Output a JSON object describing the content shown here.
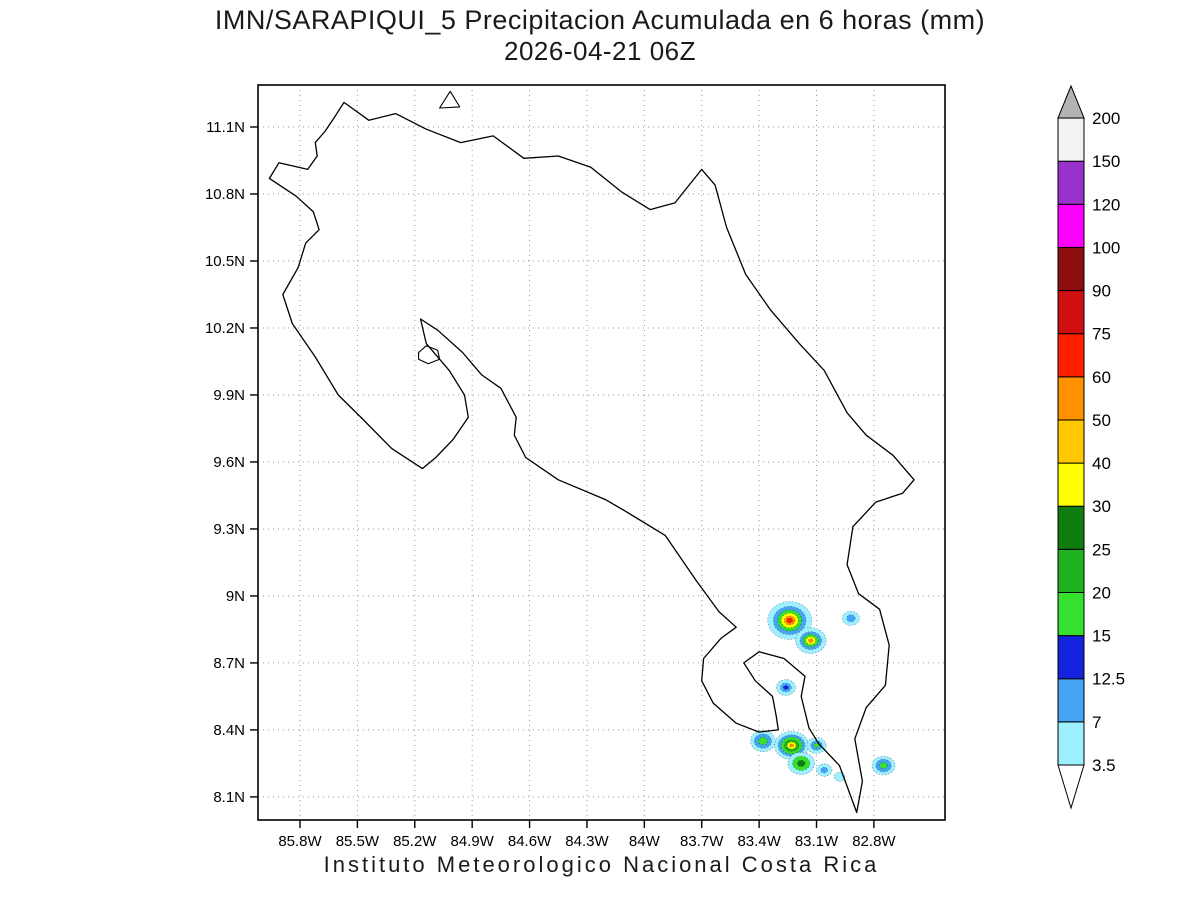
{
  "title": {
    "line1": "IMN/SARAPIQUI_5 Precipitacion Acumulada en 6 horas (mm)",
    "line2": "2026-04-21 06Z"
  },
  "footer": "Instituto Meteorologico Nacional Costa Rica",
  "chart_data": {
    "type": "filled-contour-map",
    "title": "IMN/SARAPIQUI_5 Precipitacion Acumulada en 6 horas (mm)",
    "subtitle": "2026-04-21 06Z",
    "units": "mm",
    "region": "Costa Rica",
    "grid": {
      "visible": true,
      "style": "dotted",
      "color": "#9a9a9a"
    },
    "domain": {
      "lon_w_min": 82.43,
      "lon_w_max": 86.02,
      "lat_n_min": 8.0,
      "lat_n_max": 11.29
    },
    "x_axis": {
      "ticks": [
        {
          "label": "85.8W",
          "value": 85.8
        },
        {
          "label": "85.5W",
          "value": 85.5
        },
        {
          "label": "85.2W",
          "value": 85.2
        },
        {
          "label": "84.9W",
          "value": 84.9
        },
        {
          "label": "84.6W",
          "value": 84.6
        },
        {
          "label": "84.3W",
          "value": 84.3
        },
        {
          "label": "84W",
          "value": 84.0
        },
        {
          "label": "83.7W",
          "value": 83.7
        },
        {
          "label": "83.4W",
          "value": 83.4
        },
        {
          "label": "83.1W",
          "value": 83.1
        },
        {
          "label": "82.8W",
          "value": 82.8
        }
      ]
    },
    "y_axis": {
      "ticks": [
        {
          "label": "11.1N",
          "value": 11.1
        },
        {
          "label": "10.8N",
          "value": 10.8
        },
        {
          "label": "10.5N",
          "value": 10.5
        },
        {
          "label": "10.2N",
          "value": 10.2
        },
        {
          "label": "9.9N",
          "value": 9.9
        },
        {
          "label": "9.6N",
          "value": 9.6
        },
        {
          "label": "9.3N",
          "value": 9.3
        },
        {
          "label": "9N",
          "value": 9.0
        },
        {
          "label": "8.7N",
          "value": 8.7
        },
        {
          "label": "8.4N",
          "value": 8.4
        },
        {
          "label": "8.1N",
          "value": 8.1
        }
      ]
    },
    "colorbar": {
      "position": "right",
      "levels": [
        3.5,
        7,
        12.5,
        15,
        20,
        25,
        30,
        40,
        50,
        60,
        75,
        90,
        100,
        120,
        150,
        200
      ],
      "labels_bottom_to_top": [
        "3.5",
        "7",
        "12.5",
        "15",
        "20",
        "25",
        "30",
        "40",
        "50",
        "60",
        "75",
        "90",
        "100",
        "120",
        "150",
        "200"
      ],
      "segment_colors_bottom_to_top": [
        "#9cf0ff",
        "#46a4f5",
        "#1322dd",
        "#35e02f",
        "#1fb41f",
        "#0e7c0e",
        "#ffff00",
        "#ffc800",
        "#ff9100",
        "#ff2000",
        "#cf0f0f",
        "#8c0d0d",
        "#ff00ff",
        "#9932cc",
        "#f2f2f2"
      ],
      "below_min_color": "#ffffff",
      "above_max_color": "#b3b3b3"
    },
    "coastline": {
      "main": [
        [
          85.72,
          11.03
        ],
        [
          85.67,
          11.08
        ],
        [
          85.63,
          11.13
        ],
        [
          85.57,
          11.21
        ],
        [
          85.44,
          11.13
        ],
        [
          85.3,
          11.16
        ],
        [
          85.14,
          11.09
        ],
        [
          84.96,
          11.03
        ],
        [
          84.79,
          11.06
        ],
        [
          84.63,
          10.96
        ],
        [
          84.45,
          10.97
        ],
        [
          84.28,
          10.92
        ],
        [
          84.12,
          10.81
        ],
        [
          83.97,
          10.73
        ],
        [
          83.84,
          10.76
        ],
        [
          83.7,
          10.91
        ],
        [
          83.63,
          10.84
        ],
        [
          83.57,
          10.65
        ],
        [
          83.47,
          10.44
        ],
        [
          83.34,
          10.28
        ],
        [
          83.19,
          10.13
        ],
        [
          83.06,
          10.01
        ],
        [
          82.94,
          9.82
        ],
        [
          82.84,
          9.72
        ],
        [
          82.7,
          9.63
        ],
        [
          82.59,
          9.52
        ],
        [
          82.65,
          9.46
        ],
        [
          82.79,
          9.42
        ],
        [
          82.91,
          9.31
        ],
        [
          82.94,
          9.14
        ],
        [
          82.88,
          9.01
        ],
        [
          82.77,
          8.94
        ],
        [
          82.72,
          8.78
        ],
        [
          82.74,
          8.6
        ],
        [
          82.84,
          8.5
        ],
        [
          82.9,
          8.36
        ],
        [
          82.86,
          8.17
        ],
        [
          82.89,
          8.03
        ],
        [
          82.98,
          8.24
        ],
        [
          83.09,
          8.34
        ],
        [
          83.14,
          8.41
        ],
        [
          83.18,
          8.55
        ],
        [
          83.16,
          8.64
        ],
        [
          83.27,
          8.72
        ],
        [
          83.4,
          8.75
        ],
        [
          83.48,
          8.7
        ],
        [
          83.42,
          8.62
        ],
        [
          83.33,
          8.55
        ],
        [
          83.31,
          8.46
        ],
        [
          83.3,
          8.4
        ],
        [
          83.4,
          8.39
        ],
        [
          83.52,
          8.43
        ],
        [
          83.64,
          8.52
        ],
        [
          83.7,
          8.62
        ],
        [
          83.69,
          8.72
        ],
        [
          83.6,
          8.81
        ],
        [
          83.52,
          8.86
        ],
        [
          83.61,
          8.93
        ],
        [
          83.73,
          9.07
        ],
        [
          83.89,
          9.27
        ],
        [
          84.1,
          9.38
        ],
        [
          84.2,
          9.43
        ],
        [
          84.45,
          9.52
        ],
        [
          84.62,
          9.62
        ],
        [
          84.68,
          9.72
        ],
        [
          84.67,
          9.8
        ],
        [
          84.75,
          9.93
        ],
        [
          84.85,
          9.99
        ],
        [
          84.95,
          10.09
        ],
        [
          85.08,
          10.19
        ],
        [
          85.17,
          10.24
        ],
        [
          85.14,
          10.13
        ],
        [
          85.02,
          10.01
        ],
        [
          84.94,
          9.9
        ],
        [
          84.92,
          9.8
        ],
        [
          85.0,
          9.7
        ],
        [
          85.09,
          9.62
        ],
        [
          85.16,
          9.57
        ],
        [
          85.32,
          9.66
        ],
        [
          85.47,
          9.79
        ],
        [
          85.6,
          9.9
        ],
        [
          85.72,
          10.07
        ],
        [
          85.84,
          10.22
        ],
        [
          85.89,
          10.35
        ],
        [
          85.81,
          10.47
        ],
        [
          85.77,
          10.58
        ],
        [
          85.7,
          10.64
        ],
        [
          85.73,
          10.72
        ],
        [
          85.82,
          10.79
        ],
        [
          85.96,
          10.87
        ],
        [
          85.91,
          10.94
        ],
        [
          85.76,
          10.91
        ],
        [
          85.71,
          10.97
        ]
      ],
      "chira_island": [
        [
          85.18,
          10.09
        ],
        [
          85.14,
          10.12
        ],
        [
          85.08,
          10.1
        ],
        [
          85.07,
          10.06
        ],
        [
          85.13,
          10.04
        ],
        [
          85.18,
          10.06
        ]
      ],
      "solentiname_islets": [
        [
          85.07,
          11.185
        ],
        [
          85.015,
          11.26
        ],
        [
          84.965,
          11.19
        ]
      ]
    },
    "precipitation_cells": [
      {
        "lon_w": 83.24,
        "lat_n": 8.89,
        "peak_mm": 75,
        "rings": [
          {
            "mm": 3.5,
            "rx_deg": 0.115,
            "ry_deg": 0.085
          },
          {
            "mm": 7,
            "rx_deg": 0.085,
            "ry_deg": 0.063
          },
          {
            "mm": 15,
            "rx_deg": 0.063,
            "ry_deg": 0.047
          },
          {
            "mm": 30,
            "rx_deg": 0.045,
            "ry_deg": 0.033
          },
          {
            "mm": 50,
            "rx_deg": 0.028,
            "ry_deg": 0.02
          },
          {
            "mm": 60,
            "rx_deg": 0.015,
            "ry_deg": 0.011
          }
        ]
      },
      {
        "lon_w": 83.13,
        "lat_n": 8.8,
        "peak_mm": 60,
        "rings": [
          {
            "mm": 3.5,
            "rx_deg": 0.08,
            "ry_deg": 0.058
          },
          {
            "mm": 7,
            "rx_deg": 0.056,
            "ry_deg": 0.04
          },
          {
            "mm": 15,
            "rx_deg": 0.04,
            "ry_deg": 0.028
          },
          {
            "mm": 30,
            "rx_deg": 0.026,
            "ry_deg": 0.018
          },
          {
            "mm": 50,
            "rx_deg": 0.012,
            "ry_deg": 0.009
          }
        ]
      },
      {
        "lon_w": 82.92,
        "lat_n": 8.9,
        "peak_mm": 12.5,
        "rings": [
          {
            "mm": 3.5,
            "rx_deg": 0.045,
            "ry_deg": 0.032
          },
          {
            "mm": 7,
            "rx_deg": 0.022,
            "ry_deg": 0.016
          }
        ]
      },
      {
        "lon_w": 83.26,
        "lat_n": 8.59,
        "peak_mm": 15,
        "rings": [
          {
            "mm": 3.5,
            "rx_deg": 0.05,
            "ry_deg": 0.036
          },
          {
            "mm": 7,
            "rx_deg": 0.028,
            "ry_deg": 0.02
          },
          {
            "mm": 12.5,
            "rx_deg": 0.013,
            "ry_deg": 0.009
          }
        ]
      },
      {
        "lon_w": 83.38,
        "lat_n": 8.35,
        "peak_mm": 20,
        "rings": [
          {
            "mm": 3.5,
            "rx_deg": 0.065,
            "ry_deg": 0.048
          },
          {
            "mm": 7,
            "rx_deg": 0.045,
            "ry_deg": 0.032
          },
          {
            "mm": 15,
            "rx_deg": 0.024,
            "ry_deg": 0.017
          }
        ]
      },
      {
        "lon_w": 83.23,
        "lat_n": 8.33,
        "peak_mm": 50,
        "rings": [
          {
            "mm": 3.5,
            "rx_deg": 0.09,
            "ry_deg": 0.063
          },
          {
            "mm": 7,
            "rx_deg": 0.07,
            "ry_deg": 0.048
          },
          {
            "mm": 15,
            "rx_deg": 0.055,
            "ry_deg": 0.038
          },
          {
            "mm": 20,
            "rx_deg": 0.038,
            "ry_deg": 0.026
          },
          {
            "mm": 30,
            "rx_deg": 0.024,
            "ry_deg": 0.016
          },
          {
            "mm": 50,
            "rx_deg": 0.01,
            "ry_deg": 0.007
          }
        ]
      },
      {
        "lon_w": 83.18,
        "lat_n": 8.25,
        "peak_mm": 25,
        "rings": [
          {
            "mm": 3.5,
            "rx_deg": 0.07,
            "ry_deg": 0.05
          },
          {
            "mm": 15,
            "rx_deg": 0.045,
            "ry_deg": 0.032
          },
          {
            "mm": 25,
            "rx_deg": 0.02,
            "ry_deg": 0.014
          }
        ]
      },
      {
        "lon_w": 83.1,
        "lat_n": 8.33,
        "peak_mm": 15,
        "rings": [
          {
            "mm": 3.5,
            "rx_deg": 0.05,
            "ry_deg": 0.036
          },
          {
            "mm": 7,
            "rx_deg": 0.03,
            "ry_deg": 0.021
          },
          {
            "mm": 15,
            "rx_deg": 0.015,
            "ry_deg": 0.01
          }
        ]
      },
      {
        "lon_w": 83.06,
        "lat_n": 8.22,
        "peak_mm": 7,
        "rings": [
          {
            "mm": 3.5,
            "rx_deg": 0.04,
            "ry_deg": 0.028
          },
          {
            "mm": 7,
            "rx_deg": 0.018,
            "ry_deg": 0.013
          }
        ]
      },
      {
        "lon_w": 82.75,
        "lat_n": 8.24,
        "peak_mm": 15,
        "rings": [
          {
            "mm": 3.5,
            "rx_deg": 0.06,
            "ry_deg": 0.042
          },
          {
            "mm": 7,
            "rx_deg": 0.04,
            "ry_deg": 0.028
          },
          {
            "mm": 15,
            "rx_deg": 0.02,
            "ry_deg": 0.014
          }
        ]
      },
      {
        "lon_w": 82.98,
        "lat_n": 8.19,
        "peak_mm": 3.5,
        "rings": [
          {
            "mm": 3.5,
            "rx_deg": 0.028,
            "ry_deg": 0.02
          }
        ]
      }
    ]
  }
}
